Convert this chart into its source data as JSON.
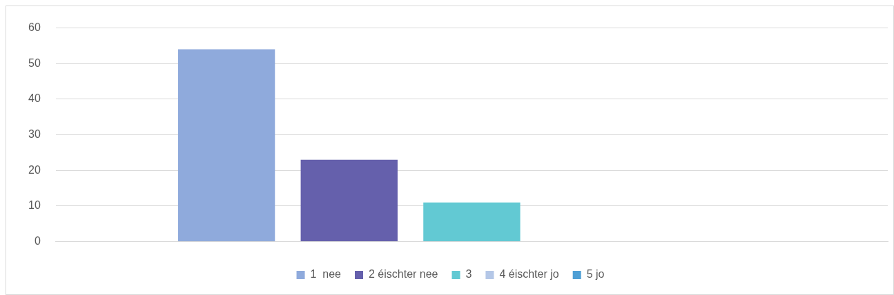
{
  "chart_data": {
    "type": "bar",
    "categories": [
      null
    ],
    "series": [
      {
        "name": "1  nee",
        "color": "#8faadc",
        "values": [
          54
        ]
      },
      {
        "name": "2 éischter nee",
        "color": "#6560ac",
        "values": [
          23
        ]
      },
      {
        "name": "3",
        "color": "#62c9d3",
        "values": [
          11
        ]
      },
      {
        "name": "4 éischter jo",
        "color": "#b4c7e7",
        "values": [
          0
        ]
      },
      {
        "name": "5 jo",
        "color": "#4e9fd5",
        "values": [
          0
        ]
      }
    ],
    "ylim": [
      0,
      60
    ],
    "yticks": [
      0,
      10,
      20,
      30,
      40,
      50,
      60
    ],
    "grid": "y",
    "legend": "bottom"
  }
}
